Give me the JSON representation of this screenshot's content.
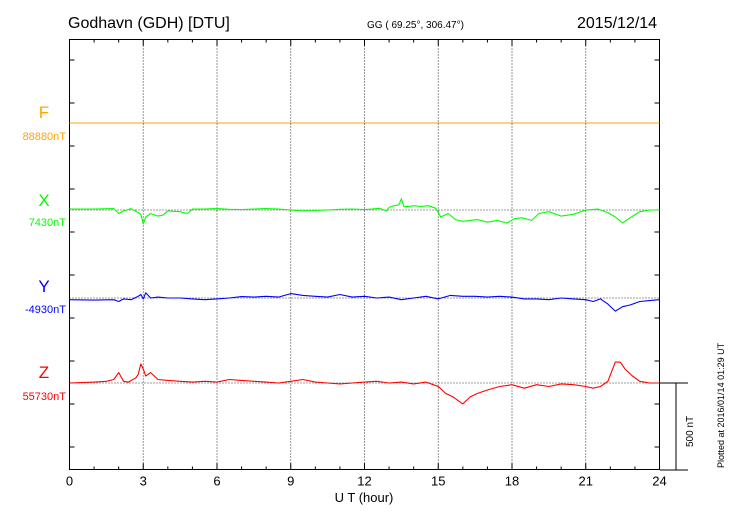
{
  "header": {
    "station": "Godhavn (GDH)  [DTU]",
    "coords": "GG ( 69.25°, 306.47°)",
    "date": "2015/12/14"
  },
  "side_note": "Plotted at 2016/01/14 01:29 UT",
  "scale_label": "500 nT",
  "chart_data": {
    "type": "line",
    "xlabel": "U T (hour)",
    "xlim": [
      0,
      24
    ],
    "xticks": [
      0,
      3,
      6,
      9,
      12,
      15,
      18,
      21,
      24
    ],
    "grid": true,
    "channels": [
      {
        "name": "F",
        "baseline": "88880nT",
        "color": "#ffa500",
        "x": [
          0,
          24
        ],
        "y": [
          0,
          0
        ]
      },
      {
        "name": "X",
        "baseline": "7430nT",
        "color": "#00ff00",
        "x": [
          0,
          1,
          1.8,
          2.0,
          2.2,
          2.5,
          2.8,
          2.9,
          3.0,
          3.1,
          3.3,
          3.6,
          3.8,
          4.0,
          4.5,
          4.8,
          5,
          5.5,
          6,
          6.5,
          7,
          7.5,
          8,
          8.5,
          9,
          9.5,
          10,
          10.5,
          11,
          11.5,
          12,
          12.3,
          12.6,
          12.9,
          13.0,
          13.2,
          13.4,
          13.5,
          13.6,
          13.8,
          14.0,
          14.3,
          14.6,
          14.9,
          15.1,
          15.4,
          15.7,
          16.0,
          16.3,
          16.6,
          17.0,
          17.4,
          17.8,
          18.1,
          18.4,
          18.8,
          19.1,
          19.5,
          20,
          20.5,
          21,
          21.5,
          21.9,
          22.2,
          22.5,
          22.8,
          23.2,
          23.6,
          24
        ],
        "y": [
          5,
          6,
          8,
          -20,
          -5,
          8,
          -15,
          -25,
          -80,
          -40,
          -20,
          -35,
          -30,
          -5,
          -10,
          -20,
          5,
          5,
          8,
          4,
          3,
          5,
          8,
          5,
          0,
          -5,
          -3,
          0,
          4,
          6,
          3,
          5,
          10,
          -5,
          15,
          25,
          30,
          65,
          20,
          20,
          25,
          20,
          25,
          10,
          -40,
          -20,
          -55,
          -65,
          -60,
          -55,
          -70,
          -60,
          -75,
          -50,
          -45,
          -60,
          -20,
          -10,
          -35,
          -25,
          0,
          5,
          -15,
          -40,
          -75,
          -45,
          -10,
          0,
          0
        ]
      },
      {
        "name": "Y",
        "baseline": "-4930nT",
        "color": "#0000ff",
        "x": [
          0,
          1,
          1.8,
          2.0,
          2.2,
          2.5,
          2.8,
          2.9,
          3.0,
          3.1,
          3.3,
          3.6,
          4,
          4.5,
          5,
          5.5,
          6,
          6.5,
          7,
          7.5,
          8,
          8.5,
          9,
          9.5,
          10,
          10.5,
          11,
          11.5,
          12,
          12.5,
          13,
          13.5,
          14,
          14.5,
          15,
          15.5,
          16,
          16.5,
          17,
          17.5,
          18,
          18.5,
          19,
          19.5,
          20,
          20.5,
          21,
          21.3,
          21.6,
          21.9,
          22.2,
          22.5,
          22.8,
          23.2,
          23.6,
          24
        ],
        "y": [
          -10,
          -12,
          -10,
          -20,
          -5,
          -10,
          10,
          20,
          -5,
          30,
          0,
          5,
          0,
          0,
          -5,
          -10,
          -5,
          0,
          8,
          5,
          10,
          5,
          25,
          15,
          10,
          5,
          20,
          5,
          10,
          0,
          5,
          -10,
          0,
          10,
          -5,
          15,
          10,
          10,
          5,
          10,
          5,
          -5,
          -5,
          -10,
          0,
          -5,
          -10,
          -20,
          -5,
          -35,
          -75,
          -50,
          -40,
          -20,
          -15,
          -10
        ]
      },
      {
        "name": "Z",
        "baseline": "55730nT",
        "color": "#ff0000",
        "x": [
          0,
          1,
          1.5,
          1.8,
          2.0,
          2.2,
          2.4,
          2.7,
          2.8,
          2.9,
          3.0,
          3.1,
          3.3,
          3.6,
          4,
          4.5,
          5,
          5.5,
          6,
          6.5,
          7,
          7.5,
          8,
          8.5,
          9,
          9.5,
          10,
          10.5,
          11,
          11.5,
          12,
          12.5,
          13,
          13.5,
          14,
          14.5,
          14.8,
          15.0,
          15.3,
          15.6,
          15.8,
          16.0,
          16.3,
          16.6,
          17,
          17.5,
          18,
          18.5,
          19,
          19.5,
          20,
          20.5,
          21,
          21.3,
          21.6,
          21.9,
          22.2,
          22.4,
          22.6,
          22.9,
          23.2,
          23.6,
          24
        ],
        "y": [
          0,
          5,
          10,
          20,
          60,
          10,
          5,
          30,
          50,
          110,
          80,
          40,
          60,
          20,
          15,
          10,
          5,
          10,
          5,
          20,
          15,
          10,
          5,
          0,
          10,
          20,
          5,
          0,
          -5,
          0,
          5,
          10,
          0,
          5,
          -5,
          5,
          -10,
          -20,
          -60,
          -80,
          -100,
          -120,
          -80,
          -60,
          -40,
          -20,
          -10,
          -30,
          -10,
          -20,
          -5,
          -10,
          -20,
          -30,
          -20,
          10,
          120,
          120,
          80,
          40,
          10,
          0,
          0
        ]
      }
    ]
  }
}
